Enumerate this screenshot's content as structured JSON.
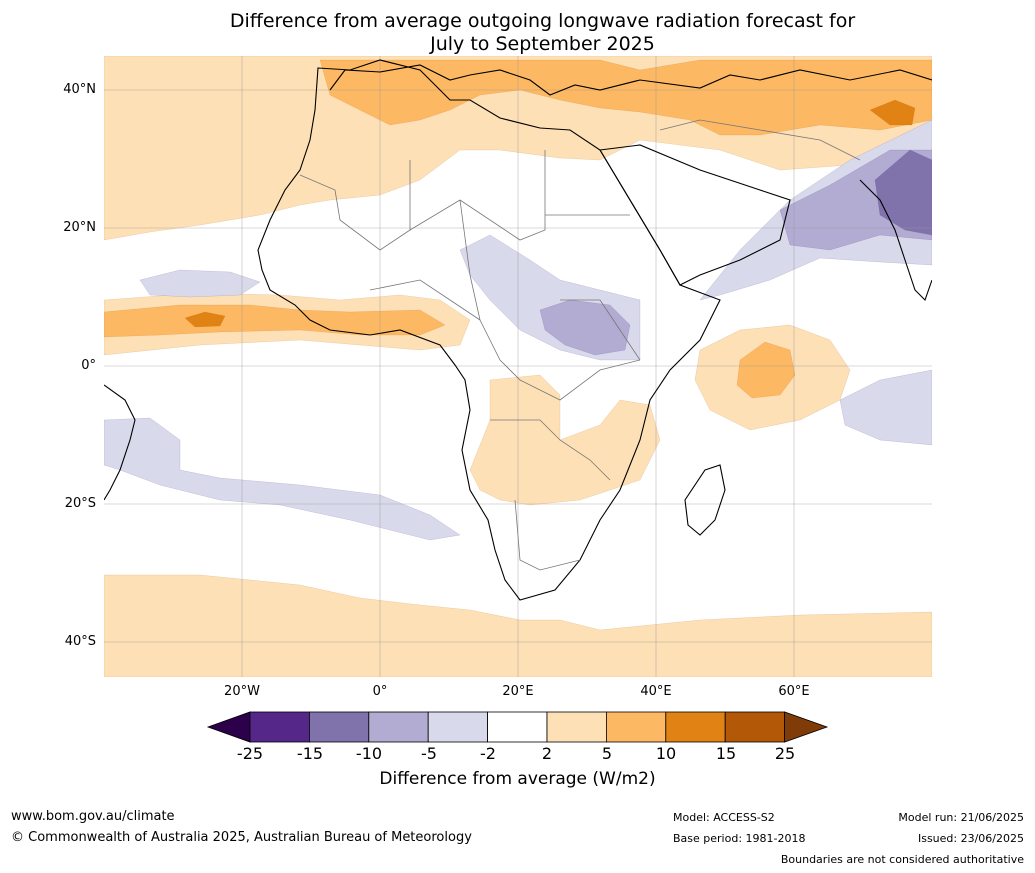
{
  "title_line1": "Difference from average outgoing longwave radiation forecast for",
  "title_line2": "July to September 2025",
  "lat_labels": [
    "40°N",
    "20°N",
    "0°",
    "20°S",
    "40°S"
  ],
  "lon_labels": [
    "20°W",
    "0°",
    "20°E",
    "40°E",
    "60°E"
  ],
  "colorbar": {
    "ticks": [
      "-25",
      "-15",
      "-10",
      "-5",
      "-2",
      "2",
      "5",
      "10",
      "15",
      "25"
    ],
    "colors": [
      "#2d004b",
      "#542788",
      "#8073ac",
      "#b2abd2",
      "#d8daeb",
      "#ffffff",
      "#fee0b6",
      "#fdb863",
      "#e08214",
      "#b35806",
      "#7f3b08"
    ],
    "label": "Difference from average (W/m2)"
  },
  "footer": {
    "website": "www.bom.gov.au/climate",
    "copyright": "© Commonwealth of Australia 2025, Australian Bureau of Meteorology",
    "model": "Model: ACCESS-S2",
    "base_period": "Base period: 1981-2018",
    "model_run": "Model run: 21/06/2025",
    "issued": "Issued: 23/06/2025",
    "disclaimer": "Boundaries are not considered authoritative"
  }
}
